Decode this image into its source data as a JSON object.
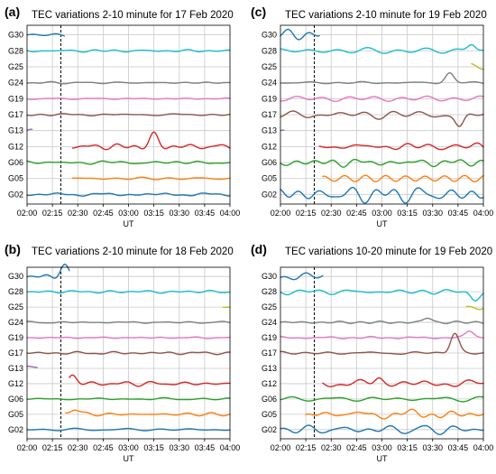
{
  "chart_data": [
    {
      "type": "line",
      "panel_label": "(a)",
      "title": "TEC variations 2-10 minute for 17 Feb 2020",
      "xlabel": "UT",
      "x_ticks": [
        "02:00",
        "02:15",
        "02:30",
        "02:45",
        "03:00",
        "03:15",
        "03:30",
        "03:45",
        "04:00"
      ],
      "xlim": [
        "02:00",
        "04:00"
      ],
      "event_time": "02:20",
      "grid": true,
      "series": [
        {
          "name": "G30",
          "color": "#1f77b4",
          "start": "02:00",
          "end": "02:22",
          "activity": 0.25,
          "bump": null
        },
        {
          "name": "G28",
          "color": "#17becf",
          "start": "02:00",
          "end": "04:00",
          "activity": 0.2,
          "bump": null
        },
        {
          "name": "G25",
          "color": "#bcbd22",
          "start": null,
          "end": null,
          "activity": 0,
          "bump": null
        },
        {
          "name": "G24",
          "color": "#7f7f7f",
          "start": "02:00",
          "end": "04:00",
          "activity": 0.1,
          "bump": null
        },
        {
          "name": "G19",
          "color": "#e377c2",
          "start": "02:00",
          "end": "04:00",
          "activity": 0.1,
          "bump": null
        },
        {
          "name": "G17",
          "color": "#8c564b",
          "start": "02:00",
          "end": "04:00",
          "activity": 0.15,
          "bump": null
        },
        {
          "name": "G13",
          "color": "#9467bd",
          "start": "02:00",
          "end": "02:03",
          "activity": 0.2,
          "bump": null
        },
        {
          "name": "G12",
          "color": "#d62728",
          "start": "02:27",
          "end": "04:00",
          "activity": 0.45,
          "bump": {
            "at": "03:15",
            "amp": 0.7
          }
        },
        {
          "name": "G06",
          "color": "#2ca02c",
          "start": "02:00",
          "end": "04:00",
          "activity": 0.2,
          "bump": null
        },
        {
          "name": "G05",
          "color": "#ff7f0e",
          "start": "02:27",
          "end": "04:00",
          "activity": 0.2,
          "bump": null
        },
        {
          "name": "G02",
          "color": "#1f77b4",
          "start": "02:00",
          "end": "04:00",
          "activity": 0.15,
          "bump": null
        }
      ]
    },
    {
      "type": "line",
      "panel_label": "(b)",
      "title": "TEC variations 2-10 minute for 18 Feb 2020",
      "xlabel": "UT",
      "x_ticks": [
        "02:00",
        "02:15",
        "02:30",
        "02:45",
        "03:00",
        "03:15",
        "03:30",
        "03:45",
        "04:00"
      ],
      "xlim": [
        "02:00",
        "04:00"
      ],
      "event_time": "02:20",
      "grid": true,
      "series": [
        {
          "name": "G30",
          "color": "#1f77b4",
          "start": "02:00",
          "end": "02:25",
          "activity": 0.35,
          "bump": {
            "at": "02:22",
            "amp": 0.6
          }
        },
        {
          "name": "G28",
          "color": "#17becf",
          "start": "02:00",
          "end": "04:00",
          "activity": 0.25,
          "bump": null
        },
        {
          "name": "G25",
          "color": "#bcbd22",
          "start": "03:56",
          "end": "04:00",
          "activity": 0.3,
          "bump": null
        },
        {
          "name": "G24",
          "color": "#7f7f7f",
          "start": "02:00",
          "end": "04:00",
          "activity": 0.1,
          "bump": null
        },
        {
          "name": "G19",
          "color": "#e377c2",
          "start": "02:00",
          "end": "04:00",
          "activity": 0.1,
          "bump": null
        },
        {
          "name": "G17",
          "color": "#8c564b",
          "start": "02:00",
          "end": "04:00",
          "activity": 0.2,
          "bump": null
        },
        {
          "name": "G13",
          "color": "#9467bd",
          "start": "02:00",
          "end": "02:06",
          "activity": 0.3,
          "bump": null
        },
        {
          "name": "G12",
          "color": "#d62728",
          "start": "02:25",
          "end": "04:00",
          "activity": 0.3,
          "bump": {
            "at": "02:27",
            "amp": 0.5
          }
        },
        {
          "name": "G06",
          "color": "#2ca02c",
          "start": "02:00",
          "end": "04:00",
          "activity": 0.15,
          "bump": null
        },
        {
          "name": "G05",
          "color": "#ff7f0e",
          "start": "02:23",
          "end": "04:00",
          "activity": 0.3,
          "bump": {
            "at": "02:28",
            "amp": 0.4
          }
        },
        {
          "name": "G02",
          "color": "#1f77b4",
          "start": "02:00",
          "end": "04:00",
          "activity": 0.15,
          "bump": null
        }
      ]
    },
    {
      "type": "line",
      "panel_label": "(c)",
      "title": "TEC variations 2-10 minute for 19 Feb 2020",
      "xlabel": "UT",
      "x_ticks": [
        "02:00",
        "02:15",
        "02:30",
        "02:45",
        "03:00",
        "03:15",
        "03:30",
        "03:45",
        "04:00"
      ],
      "xlim": [
        "02:00",
        "04:00"
      ],
      "event_time": "02:20",
      "grid": true,
      "series": [
        {
          "name": "G30",
          "color": "#1f77b4",
          "start": "02:00",
          "end": "02:23",
          "activity": 0.6,
          "bump": null
        },
        {
          "name": "G28",
          "color": "#17becf",
          "start": "02:00",
          "end": "04:00",
          "activity": 0.4,
          "bump": {
            "at": "03:53",
            "amp": 0.5
          }
        },
        {
          "name": "G25",
          "color": "#bcbd22",
          "start": "03:53",
          "end": "04:00",
          "activity": 0.4,
          "bump": null
        },
        {
          "name": "G24",
          "color": "#7f7f7f",
          "start": "02:00",
          "end": "04:00",
          "activity": 0.2,
          "bump": {
            "at": "03:40",
            "amp": 0.6
          }
        },
        {
          "name": "G19",
          "color": "#e377c2",
          "start": "02:00",
          "end": "04:00",
          "activity": 0.3,
          "bump": null
        },
        {
          "name": "G17",
          "color": "#8c564b",
          "start": "02:00",
          "end": "04:00",
          "activity": 0.45,
          "bump": {
            "at": "03:46",
            "amp": -0.8
          }
        },
        {
          "name": "G13",
          "color": "#9467bd",
          "start": "02:00",
          "end": "02:02",
          "activity": 0.1,
          "bump": null
        },
        {
          "name": "G12",
          "color": "#d62728",
          "start": "02:23",
          "end": "04:00",
          "activity": 0.4,
          "bump": null
        },
        {
          "name": "G06",
          "color": "#2ca02c",
          "start": "02:00",
          "end": "04:00",
          "activity": 0.45,
          "bump": null
        },
        {
          "name": "G05",
          "color": "#ff7f0e",
          "start": "02:25",
          "end": "04:00",
          "activity": 0.4,
          "bump": null
        },
        {
          "name": "G02",
          "color": "#1f77b4",
          "start": "02:00",
          "end": "04:00",
          "activity": 1.0,
          "bump": null
        }
      ]
    },
    {
      "type": "line",
      "panel_label": "(d)",
      "title": "TEC variations 10-20 minute for 19 Feb 2020",
      "xlabel": "UT",
      "x_ticks": [
        "02:00",
        "02:15",
        "02:30",
        "02:45",
        "03:00",
        "03:15",
        "03:30",
        "03:45",
        "04:00"
      ],
      "xlim": [
        "02:00",
        "04:00"
      ],
      "event_time": "02:20",
      "grid": true,
      "series": [
        {
          "name": "G30",
          "color": "#1f77b4",
          "start": "02:00",
          "end": "02:25",
          "activity": 0.4,
          "bump": null
        },
        {
          "name": "G28",
          "color": "#17becf",
          "start": "02:00",
          "end": "04:00",
          "activity": 0.35,
          "bump": {
            "at": "03:55",
            "amp": -0.5
          }
        },
        {
          "name": "G25",
          "color": "#bcbd22",
          "start": "03:50",
          "end": "04:00",
          "activity": 0.3,
          "bump": null
        },
        {
          "name": "G24",
          "color": "#7f7f7f",
          "start": "02:00",
          "end": "04:00",
          "activity": 0.15,
          "bump": {
            "at": "03:27",
            "amp": 0.3
          }
        },
        {
          "name": "G19",
          "color": "#e377c2",
          "start": "02:00",
          "end": "04:00",
          "activity": 0.2,
          "bump": {
            "at": "03:52",
            "amp": 0.45
          }
        },
        {
          "name": "G17",
          "color": "#8c564b",
          "start": "02:00",
          "end": "04:00",
          "activity": 0.2,
          "bump": {
            "at": "03:43",
            "amp": 1.3
          }
        },
        {
          "name": "G13",
          "color": "#9467bd",
          "start": null,
          "end": null,
          "activity": 0,
          "bump": null
        },
        {
          "name": "G12",
          "color": "#d62728",
          "start": "02:25",
          "end": "04:00",
          "activity": 0.45,
          "bump": {
            "at": "02:58",
            "amp": 0.4
          }
        },
        {
          "name": "G06",
          "color": "#2ca02c",
          "start": "02:00",
          "end": "04:00",
          "activity": 0.3,
          "bump": null
        },
        {
          "name": "G05",
          "color": "#ff7f0e",
          "start": "02:15",
          "end": "04:00",
          "activity": 0.6,
          "bump": null
        },
        {
          "name": "G02",
          "color": "#1f77b4",
          "start": "02:00",
          "end": "04:00",
          "activity": 0.6,
          "bump": null
        }
      ]
    }
  ]
}
